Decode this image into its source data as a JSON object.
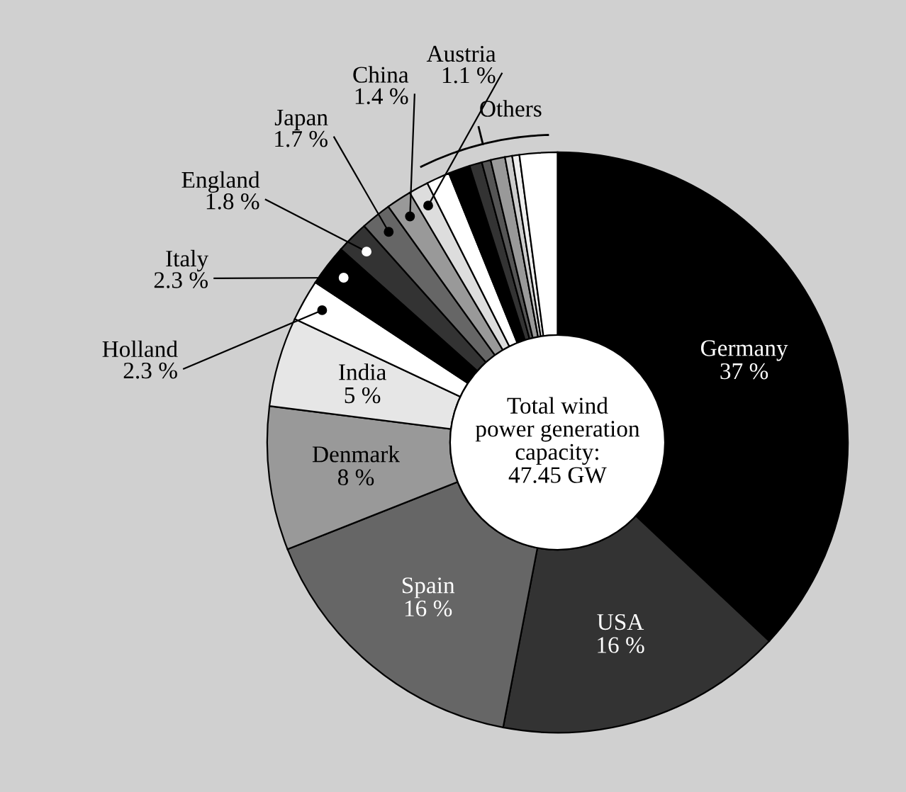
{
  "chart_data": {
    "type": "donut",
    "categories": [
      "Germany",
      "USA",
      "Spain",
      "Denmark",
      "India",
      "Holland",
      "Italy",
      "England",
      "Japan",
      "China",
      "Austria",
      null,
      null,
      null,
      null,
      null,
      null,
      null,
      null
    ],
    "values": [
      37,
      16,
      16,
      8,
      5,
      2.3,
      2.3,
      1.8,
      1.7,
      1.4,
      1.1,
      1.3,
      1.2,
      0.7,
      0.5,
      0.8,
      0.4,
      0.4,
      2.1
    ],
    "value_labels": [
      "37 %",
      "16 %",
      "16 %",
      "8 %",
      "5 %",
      "2.3 %",
      "2.3 %",
      "1.8 %",
      "1.7 %",
      "1.4 %",
      "1.1 %",
      null,
      null,
      null,
      null,
      null,
      null,
      null,
      null
    ],
    "colors": [
      "#000000",
      "#333333",
      "#666666",
      "#999999",
      "#e6e6e6",
      "#ffffff",
      "#000000",
      "#333333",
      "#666666",
      "#999999",
      "#dddddd",
      "#ffffff",
      "#000000",
      "#333333",
      "#555555",
      "#999999",
      "#cccccc",
      "#eeeeee",
      "#ffffff"
    ],
    "annotations": [
      "Total wind\npower generation\ncapacity:\n47.45 GW",
      "Others"
    ]
  }
}
